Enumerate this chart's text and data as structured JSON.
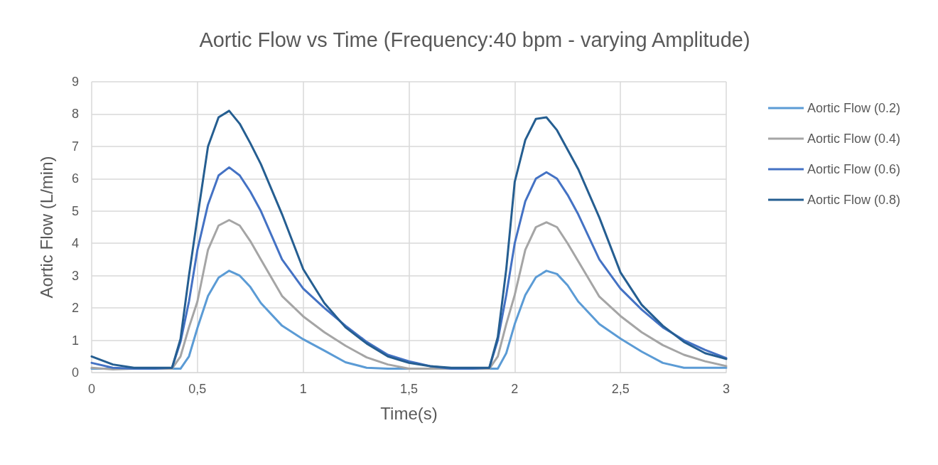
{
  "chart_data": {
    "type": "line",
    "title": "Aortic Flow vs Time (Frequency:40 bpm - varying Amplitude)",
    "xlabel": "Time(s)",
    "ylabel": "Aortic Flow (L/min)",
    "x": [
      0,
      0.1,
      0.2,
      0.3,
      0.38,
      0.42,
      0.46,
      0.5,
      0.55,
      0.6,
      0.65,
      0.7,
      0.75,
      0.8,
      0.9,
      1.0,
      1.1,
      1.2,
      1.3,
      1.4,
      1.5,
      1.6,
      1.7,
      1.8,
      1.88,
      1.92,
      1.96,
      2.0,
      2.05,
      2.1,
      2.15,
      2.2,
      2.25,
      2.3,
      2.4,
      2.5,
      2.6,
      2.7,
      2.8,
      2.9,
      3.0
    ],
    "series": [
      {
        "name": "Aortic Flow (0.2)",
        "color": "#5b9bd5",
        "values": [
          0.12,
          0.12,
          0.12,
          0.12,
          0.12,
          0.12,
          0.5,
          1.38,
          2.37,
          2.94,
          3.15,
          3.0,
          2.65,
          2.15,
          1.45,
          1.03,
          0.68,
          0.32,
          0.15,
          0.12,
          0.12,
          0.12,
          0.12,
          0.12,
          0.12,
          0.12,
          0.6,
          1.5,
          2.4,
          2.95,
          3.15,
          3.05,
          2.7,
          2.2,
          1.5,
          1.05,
          0.65,
          0.3,
          0.15,
          0.15,
          0.15
        ]
      },
      {
        "name": "Aortic Flow (0.4)",
        "color": "#a5a5a5",
        "values": [
          0.15,
          0.1,
          0.12,
          0.12,
          0.12,
          0.5,
          1.4,
          2.2,
          3.8,
          4.55,
          4.72,
          4.55,
          4.07,
          3.5,
          2.37,
          1.74,
          1.25,
          0.83,
          0.47,
          0.25,
          0.12,
          0.12,
          0.12,
          0.12,
          0.12,
          0.5,
          1.5,
          2.4,
          3.8,
          4.5,
          4.65,
          4.5,
          4.0,
          3.45,
          2.35,
          1.75,
          1.25,
          0.85,
          0.55,
          0.35,
          0.2
        ]
      },
      {
        "name": "Aortic Flow (0.6)",
        "color": "#4472c4",
        "values": [
          0.3,
          0.15,
          0.12,
          0.12,
          0.15,
          0.95,
          2.2,
          3.8,
          5.2,
          6.1,
          6.35,
          6.1,
          5.6,
          5.0,
          3.5,
          2.6,
          2.0,
          1.45,
          0.95,
          0.55,
          0.35,
          0.2,
          0.12,
          0.12,
          0.15,
          1.0,
          2.4,
          4.0,
          5.3,
          6.0,
          6.2,
          6.0,
          5.5,
          4.9,
          3.5,
          2.6,
          1.95,
          1.4,
          1.0,
          0.7,
          0.45
        ]
      },
      {
        "name": "Aortic Flow (0.8)",
        "color": "#255e91",
        "values": [
          0.5,
          0.25,
          0.15,
          0.15,
          0.15,
          1.04,
          3.0,
          4.8,
          7.0,
          7.9,
          8.1,
          7.7,
          7.1,
          6.45,
          4.9,
          3.2,
          2.15,
          1.4,
          0.9,
          0.5,
          0.3,
          0.2,
          0.15,
          0.15,
          0.15,
          1.1,
          3.2,
          5.9,
          7.2,
          7.85,
          7.9,
          7.5,
          6.9,
          6.3,
          4.8,
          3.1,
          2.1,
          1.45,
          0.95,
          0.6,
          0.42
        ]
      }
    ],
    "xlim": [
      0,
      3
    ],
    "xticks": [
      0,
      {
        "value": 0.5,
        "label": "0,5"
      },
      1,
      {
        "value": 1.5,
        "label": "1,5"
      },
      2,
      {
        "value": 2.5,
        "label": "2,5"
      },
      3
    ],
    "ylim": [
      0,
      9
    ],
    "yticks": [
      0,
      1,
      2,
      3,
      4,
      5,
      6,
      7,
      8,
      9
    ],
    "grid": true,
    "legend": "right",
    "marker": "none",
    "line_style": "solid"
  }
}
